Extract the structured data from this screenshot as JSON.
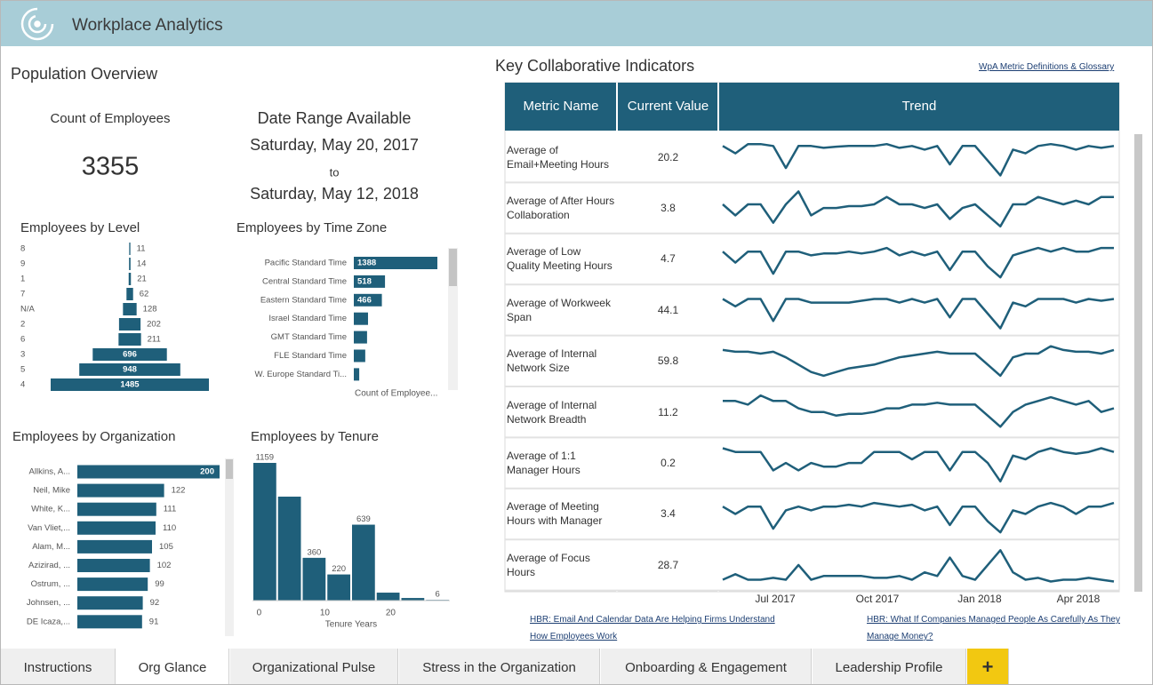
{
  "header": {
    "title": "Workplace Analytics"
  },
  "population": {
    "title": "Population Overview",
    "count_label": "Count of Employees",
    "count": 3355,
    "date_range_label": "Date Range Available",
    "start": "Saturday, May 20, 2017",
    "to": "to",
    "end": "Saturday, May 12, 2018"
  },
  "level_chart": {
    "type": "funnel",
    "title": "Employees by Level",
    "color": "#1f5f7a",
    "categories": [
      "8",
      "9",
      "1",
      "7",
      "N/A",
      "2",
      "6",
      "3",
      "5",
      "4"
    ],
    "values": [
      11,
      14,
      21,
      62,
      128,
      202,
      211,
      696,
      948,
      1485
    ]
  },
  "timezone_chart": {
    "type": "hbar",
    "title": "Employees by Time Zone",
    "color": "#1f5f7a",
    "categories": [
      "Pacific Standard Time",
      "Central Standard Time",
      "Eastern Standard Time",
      "Israel Standard Time",
      "GMT Standard Time",
      "FLE Standard Time",
      "W. Europe Standard Ti..."
    ],
    "values": [
      1388,
      518,
      466,
      236,
      220,
      190,
      90
    ],
    "value_labels": [
      "1388",
      "518",
      "466",
      null,
      null,
      null,
      null
    ],
    "xlabel": "Count of Employee..."
  },
  "org_chart": {
    "type": "hbar",
    "title": "Employees by Organization",
    "color": "#1f5f7a",
    "categories": [
      "Allkins, A...",
      "Neil, Mike",
      "White, K...",
      "Van Vliet,...",
      "Alam, M...",
      "Azizirad, ...",
      "Ostrum, ...",
      "Johnsen, ...",
      "DE Icaza,..."
    ],
    "values": [
      200,
      122,
      111,
      110,
      105,
      102,
      99,
      92,
      91
    ]
  },
  "tenure_chart": {
    "type": "histogram",
    "title": "Employees by Tenure",
    "color": "#1f5f7a",
    "bins": [
      -1,
      2.75,
      6.5,
      10.25,
      14,
      17.75,
      21.5,
      25.25,
      29
    ],
    "values": [
      1159,
      875,
      360,
      220,
      639,
      67,
      22,
      6
    ],
    "value_labels": [
      "1159",
      null,
      "360",
      "220",
      "639",
      null,
      null,
      "6"
    ],
    "xlim": [
      -1,
      29
    ],
    "xticks": [
      0,
      10,
      20
    ],
    "xlabel": "Tenure Years"
  },
  "kci": {
    "title": "Key Collaborative Indicators",
    "glossary_link": "WpA Metric Definitions & Glossary",
    "columns": [
      "Metric Name",
      "Current Value",
      "Trend"
    ],
    "trend_color": "#1f5f7a",
    "rows": [
      {
        "name": "Average of Email+Meeting Hours",
        "value": 20.2,
        "trend": [
          8,
          6,
          8.5,
          8.5,
          8,
          2,
          8,
          8,
          7.5,
          7.8,
          8,
          8,
          8,
          8.5,
          7.5,
          8,
          7,
          8,
          3,
          8,
          8,
          4,
          0,
          7,
          6,
          8,
          8.5,
          8,
          7,
          8,
          7.5,
          8
        ]
      },
      {
        "name": "Average of After Hours Collaboration",
        "value": 3.8,
        "trend": [
          6,
          3,
          6,
          6,
          1,
          6,
          9.5,
          3,
          5,
          5,
          5.5,
          5.5,
          6,
          8,
          6,
          6,
          5,
          6,
          2,
          5,
          6,
          3,
          0,
          6,
          6,
          8,
          7,
          6,
          7,
          6,
          8,
          8
        ]
      },
      {
        "name": "Average of Low Quality Meeting Hours",
        "value": 4.7,
        "trend": [
          7,
          4,
          7,
          7,
          1,
          7,
          7,
          6,
          6.5,
          6.5,
          7,
          6.5,
          7,
          8,
          6,
          7,
          6,
          7,
          2,
          7,
          7,
          3,
          0,
          6,
          7,
          8,
          7,
          8,
          7,
          7,
          8,
          8
        ]
      },
      {
        "name": "Average of Workweek Span",
        "value": 44.1,
        "trend": [
          8,
          6,
          8,
          8,
          2,
          8,
          8,
          7,
          7,
          7,
          7,
          7.5,
          8,
          8,
          7,
          8,
          7,
          8,
          3,
          8,
          8,
          4,
          0,
          7,
          6,
          8,
          8,
          8,
          7,
          8,
          7.5,
          8
        ]
      },
      {
        "name": "Average of Internal Network Size",
        "value": 59.8,
        "trend": [
          8,
          7.5,
          7.5,
          7,
          7.5,
          6,
          4,
          2,
          1,
          2,
          3,
          3.5,
          4,
          5,
          6,
          6.5,
          7,
          7.5,
          7,
          7,
          7,
          4,
          1,
          6,
          7,
          7,
          9,
          8,
          7.5,
          7.5,
          7,
          8
        ]
      },
      {
        "name": "Average of Internal Network Breadth",
        "value": 11.2,
        "trend": [
          8,
          8,
          7,
          9.5,
          8,
          8,
          6,
          5,
          5,
          4,
          4.5,
          4.5,
          5,
          6,
          6,
          7,
          7,
          7.5,
          7,
          7,
          7,
          4,
          1,
          5,
          7,
          8,
          9,
          8,
          7,
          8,
          5,
          6
        ]
      },
      {
        "name": "Average of 1:1 Manager Hours",
        "value": 0.2,
        "trend": [
          9,
          8,
          8,
          8,
          3,
          5,
          3,
          5,
          4,
          4,
          5,
          5,
          8,
          8,
          8,
          6,
          8,
          8,
          3,
          8,
          8,
          5,
          0,
          7,
          6,
          8,
          9,
          8,
          7.5,
          8,
          9,
          8
        ]
      },
      {
        "name": "Average of Meeting Hours with Manager",
        "value": 3.4,
        "trend": [
          7,
          5,
          7,
          7,
          1,
          6,
          7,
          6,
          7,
          7,
          7.5,
          7,
          8,
          7.5,
          7,
          7.5,
          6,
          7,
          2,
          7,
          7,
          3,
          0,
          6,
          5,
          7,
          8,
          7,
          5,
          7,
          7,
          8
        ]
      },
      {
        "name": "Average of Focus Hours",
        "value": 28.7,
        "trend": [
          1,
          2.5,
          1,
          1,
          1.5,
          1,
          5,
          1,
          2,
          2,
          2,
          2,
          1.5,
          1.5,
          2,
          1,
          3,
          2,
          7,
          2,
          1,
          5,
          9,
          3,
          1,
          1.5,
          0.5,
          1,
          1,
          1.5,
          1,
          0.5
        ]
      }
    ],
    "trend_axis": [
      "Jul 2017",
      "Oct 2017",
      "Jan 2018",
      "Apr 2018"
    ],
    "links": [
      "HBR: Email And Calendar Data Are Helping Firms Understand How Employees Work",
      "HBR: What If Companies Managed People As Carefully As They Manage Money?"
    ]
  },
  "tabs": [
    "Instructions",
    "Org Glance",
    "Organizational Pulse",
    "Stress in the Organization",
    "Onboarding & Engagement",
    "Leadership Profile",
    "+"
  ],
  "active_tab": 1
}
